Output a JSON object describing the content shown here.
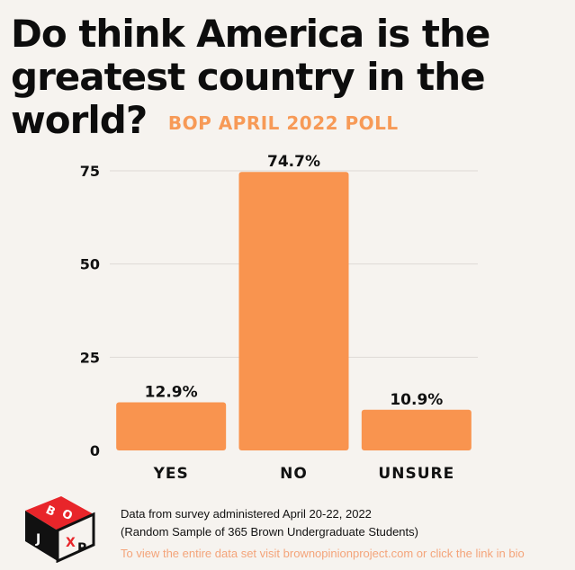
{
  "header": {
    "title": "Do think America is the greatest country in the world?",
    "subtitle": "BOP APRIL 2022 POLL"
  },
  "colors": {
    "bar": "#f9944f",
    "accent": "#f79a57",
    "background": "#f6f3ef",
    "grid": "#dedad6",
    "logo_red": "#e8252a"
  },
  "logo": {
    "letters": [
      "B",
      "O",
      "P",
      "X",
      "J"
    ]
  },
  "chart_data": {
    "type": "bar",
    "categories": [
      "YES",
      "NO",
      "UNSURE"
    ],
    "values": [
      12.9,
      74.7,
      10.9
    ],
    "data_labels": [
      "12.9%",
      "74.7%",
      "10.9%"
    ],
    "yticks": [
      0,
      25,
      50,
      75
    ],
    "ylim": [
      0,
      75
    ],
    "grid": true,
    "xlabel": "",
    "ylabel": ""
  },
  "footer": {
    "line1": "Data from survey administered April 20-22, 2022",
    "line2": "(Random Sample of 365 Brown Undergraduate Students)",
    "link": "To view the entire data set visit brownopinionproject.com or click the link in bio"
  }
}
